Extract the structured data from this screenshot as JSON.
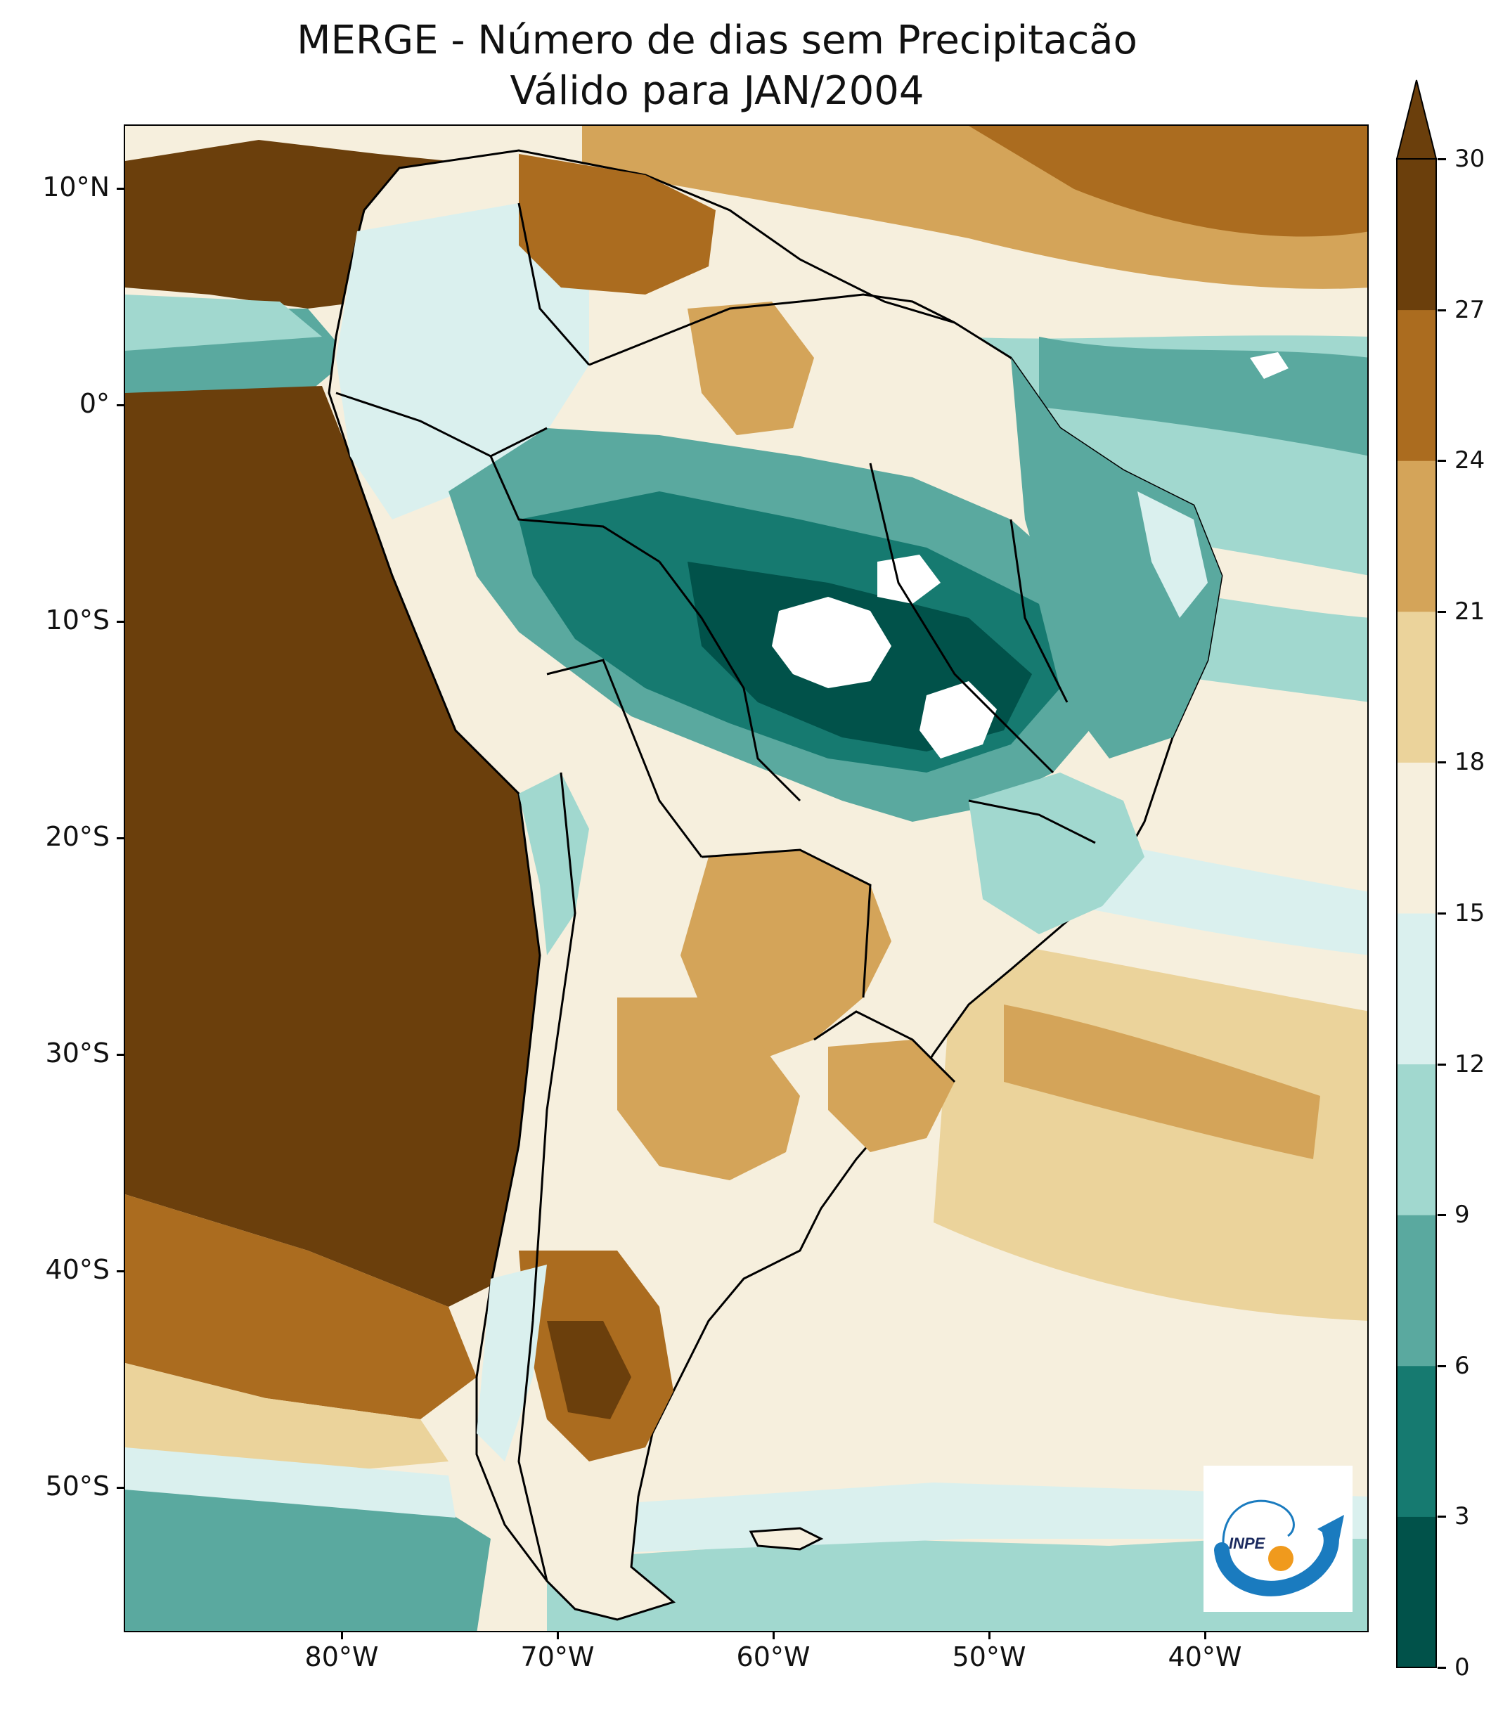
{
  "title": {
    "line1": "MERGE - Número de dias sem Precipitacão",
    "line2": "Válido para JAN/2004"
  },
  "map": {
    "region": "South America",
    "lat_range": [
      -56,
      13
    ],
    "lon_range": [
      -90,
      -33
    ],
    "lat_ticks": [
      "10°N",
      "0°",
      "10°S",
      "20°S",
      "30°S",
      "40°S",
      "50°S"
    ],
    "lon_ticks": [
      "80°W",
      "70°W",
      "60°W",
      "50°W",
      "40°W"
    ],
    "colors": {
      "brown_dark": "#6b3f0c",
      "brown": "#8f5a1a",
      "brown_mid": "#b57a33",
      "tan": "#d6a862",
      "tan_light": "#ead8a6",
      "cream": "#f6efdd",
      "teal_pale": "#dcf0ee",
      "teal_light": "#a8dad0",
      "teal_mid": "#5fb0a6",
      "teal": "#1b7d74",
      "teal_dark": "#01524a",
      "no_data": "#ffffff",
      "border": "#000000"
    }
  },
  "colorbar": {
    "ticks": [
      "30",
      "27",
      "24",
      "21",
      "18",
      "15",
      "12",
      "9",
      "6",
      "3",
      "0"
    ],
    "bins": [
      {
        "from": 0,
        "to": 3,
        "color": "#01524a"
      },
      {
        "from": 3,
        "to": 6,
        "color": "#167a70"
      },
      {
        "from": 6,
        "to": 9,
        "color": "#5aa99f"
      },
      {
        "from": 9,
        "to": 12,
        "color": "#a1d8cf"
      },
      {
        "from": 12,
        "to": 15,
        "color": "#daf0ee"
      },
      {
        "from": 15,
        "to": 18,
        "color": "#f6efdd"
      },
      {
        "from": 18,
        "to": 21,
        "color": "#ebd39b"
      },
      {
        "from": 21,
        "to": 24,
        "color": "#d4a459"
      },
      {
        "from": 24,
        "to": 27,
        "color": "#ab6c1f"
      },
      {
        "from": 27,
        "to": 30,
        "color": "#6b3f0c"
      }
    ],
    "extend": "max"
  },
  "logo": {
    "text": "INPE",
    "colors": {
      "arc": "#1a7bbf",
      "dot": "#f09a1d"
    }
  }
}
